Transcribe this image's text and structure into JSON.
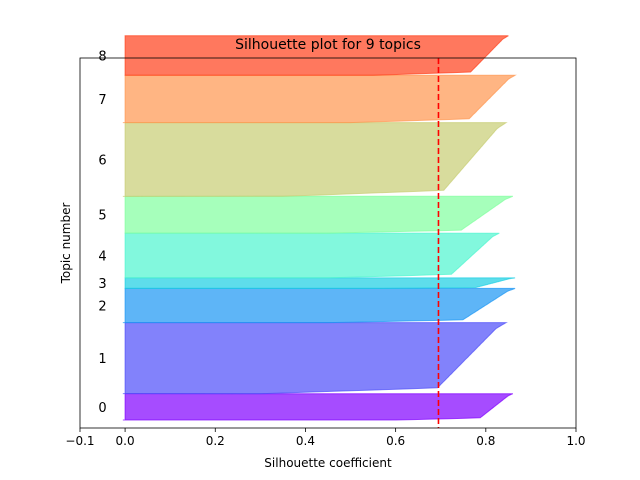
{
  "chart_data": {
    "type": "area",
    "title": "Silhouette plot for 9 topics",
    "xlabel": "Silhouette coefficient",
    "ylabel": "Topic number",
    "xlim": [
      -0.1,
      1.0
    ],
    "xticks": [
      "−0.1",
      "0.0",
      "0.2",
      "0.4",
      "0.6",
      "0.8",
      "1.0"
    ],
    "xtick_values": [
      -0.1,
      0.0,
      0.2,
      0.4,
      0.6,
      0.8,
      1.0
    ],
    "average_silhouette": 0.695,
    "average_line_color": "#ff0000",
    "series": [
      {
        "label": "0",
        "y_lower": 0,
        "y_upper": 50,
        "min_score": -0.005,
        "low_score": 0.6,
        "max_score": 0.86,
        "color": "#8000ff"
      },
      {
        "label": "1",
        "y_lower": 50,
        "y_upper": 185,
        "min_score": -0.005,
        "low_score": 0.3,
        "max_score": 0.845,
        "color": "#4d4df9"
      },
      {
        "label": "2",
        "y_lower": 185,
        "y_upper": 250,
        "min_score": -0.005,
        "low_score": 0.45,
        "max_score": 0.865,
        "color": "#1996f3"
      },
      {
        "label": "3",
        "y_lower": 250,
        "y_upper": 270,
        "min_score": 0.0,
        "low_score": 0.55,
        "max_score": 0.865,
        "color": "#1acfe3"
      },
      {
        "label": "4",
        "y_lower": 270,
        "y_upper": 355,
        "min_score": 0.0,
        "low_score": 0.45,
        "max_score": 0.83,
        "color": "#4df5ce"
      },
      {
        "label": "5",
        "y_lower": 355,
        "y_upper": 425,
        "min_score": 0.0,
        "low_score": 0.45,
        "max_score": 0.86,
        "color": "#80ff9e"
      },
      {
        "label": "6",
        "y_lower": 425,
        "y_upper": 565,
        "min_score": -0.005,
        "low_score": 0.35,
        "max_score": 0.845,
        "color": "#c8cd73"
      },
      {
        "label": "7",
        "y_lower": 565,
        "y_upper": 655,
        "min_score": -0.005,
        "low_score": 0.5,
        "max_score": 0.865,
        "color": "#ff964e"
      },
      {
        "label": "8",
        "y_lower": 655,
        "y_upper": 730,
        "min_score": 0.0,
        "low_score": 0.55,
        "max_score": 0.85,
        "color": "#ff3e1a"
      }
    ],
    "y_total": 750,
    "grid": false,
    "legend": "none"
  }
}
